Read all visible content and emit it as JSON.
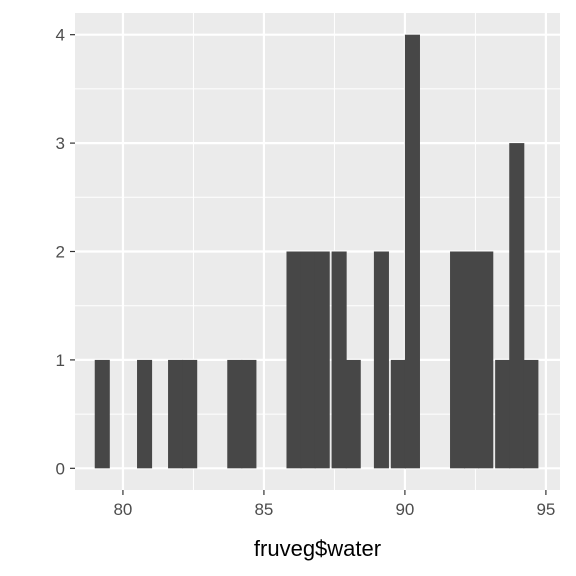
{
  "chart_data": {
    "type": "bar",
    "xlabel": "fruveg$water",
    "ylabel": "",
    "x_ticks": [
      80,
      85,
      90,
      95
    ],
    "y_ticks": [
      0,
      1,
      2,
      3,
      4
    ],
    "xlim": [
      78.3,
      95.5
    ],
    "ylim": [
      -0.2,
      4.2
    ],
    "bin_width": 0.52,
    "bins": [
      {
        "x0": 79.0,
        "count": 1
      },
      {
        "x0": 80.5,
        "count": 1
      },
      {
        "x0": 81.6,
        "count": 1
      },
      {
        "x0": 82.1,
        "count": 1
      },
      {
        "x0": 83.7,
        "count": 1
      },
      {
        "x0": 84.2,
        "count": 1
      },
      {
        "x0": 85.8,
        "count": 2
      },
      {
        "x0": 86.3,
        "count": 2
      },
      {
        "x0": 86.8,
        "count": 2
      },
      {
        "x0": 87.4,
        "count": 2
      },
      {
        "x0": 87.9,
        "count": 1
      },
      {
        "x0": 88.9,
        "count": 2
      },
      {
        "x0": 89.5,
        "count": 1
      },
      {
        "x0": 90.0,
        "count": 4
      },
      {
        "x0": 91.6,
        "count": 2
      },
      {
        "x0": 92.1,
        "count": 2
      },
      {
        "x0": 92.6,
        "count": 2
      },
      {
        "x0": 93.2,
        "count": 1
      },
      {
        "x0": 93.7,
        "count": 3
      },
      {
        "x0": 94.2,
        "count": 1
      }
    ],
    "grid": true,
    "colors": {
      "panel": "#ebebeb",
      "grid": "#ffffff",
      "bar": "#474747",
      "tick": "#333333"
    }
  }
}
